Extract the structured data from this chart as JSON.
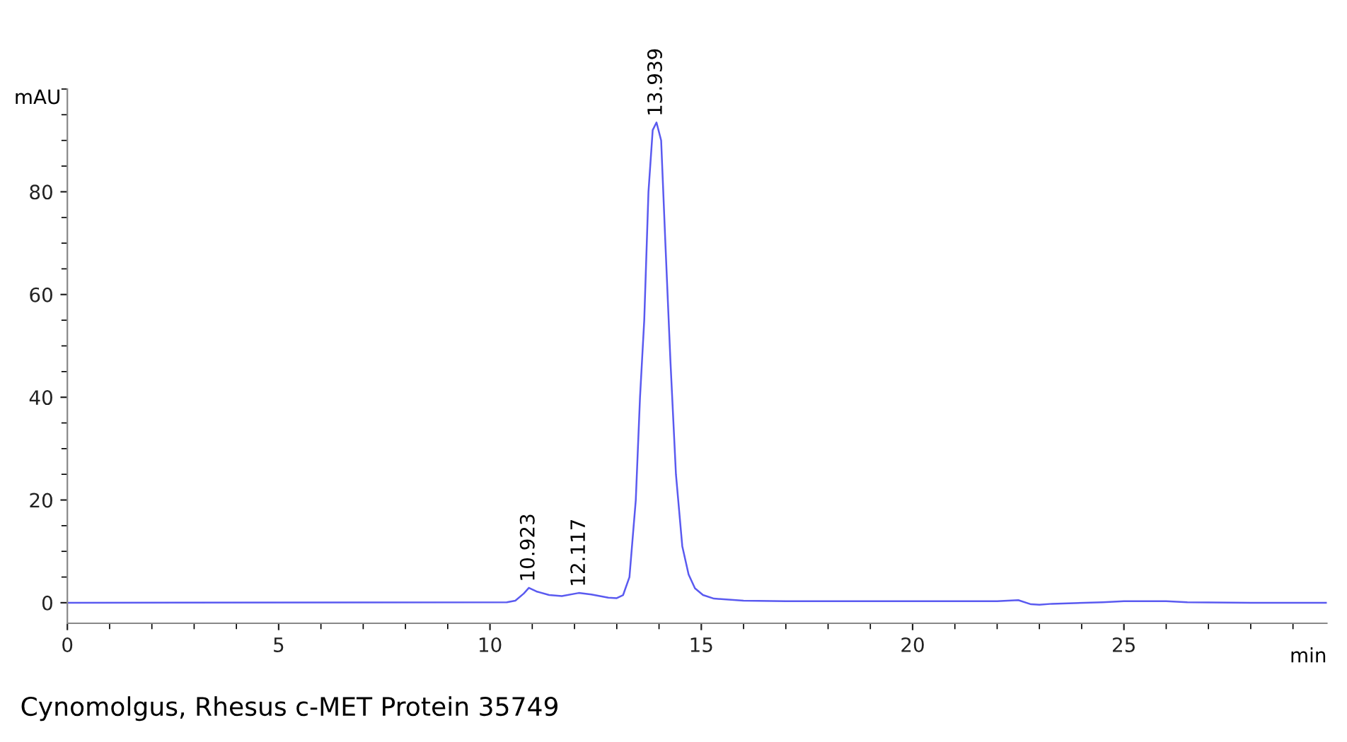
{
  "chart_data": {
    "type": "line",
    "xlabel": "min",
    "ylabel": "mAU",
    "xlim": [
      0,
      29.8
    ],
    "xticks": [
      0,
      5,
      10,
      15,
      20,
      25
    ],
    "ylim": [
      -4,
      100
    ],
    "yticks": [
      0,
      20,
      40,
      60,
      80
    ],
    "grid": false,
    "legend": false,
    "marker": "none",
    "line_style": "solid",
    "series": [
      {
        "color": "#5a5af0",
        "x": [
          0,
          10.4,
          10.6,
          10.8,
          10.92,
          11.1,
          11.4,
          11.7,
          12.1,
          12.4,
          12.8,
          13.0,
          13.15,
          13.3,
          13.45,
          13.55,
          13.65,
          13.75,
          13.85,
          13.94,
          14.05,
          14.15,
          14.27,
          14.4,
          14.55,
          14.7,
          14.85,
          15.04,
          15.3,
          16,
          17,
          20,
          22,
          22.5,
          22.8,
          23.0,
          23.3,
          24.5,
          25,
          26,
          26.5,
          28,
          29.8
        ],
        "values": [
          0,
          0.1,
          0.4,
          1.8,
          2.9,
          2.2,
          1.5,
          1.3,
          1.9,
          1.6,
          1.0,
          0.9,
          1.5,
          5,
          20,
          40,
          55,
          80,
          92,
          93.5,
          90,
          70,
          47,
          25,
          11,
          5.5,
          2.8,
          1.5,
          0.8,
          0.4,
          0.3,
          0.3,
          0.3,
          0.5,
          -0.3,
          -0.4,
          -0.2,
          0.1,
          0.3,
          0.3,
          0.1,
          0,
          0
        ]
      }
    ],
    "annotations": [
      {
        "text": "10.923",
        "x": 10.923,
        "y": 2.9
      },
      {
        "text": "12.117",
        "x": 12.117,
        "y": 1.9
      },
      {
        "text": "13.939",
        "x": 13.939,
        "y": 93.5
      },
      "Cynomolgus, Rhesus c-MET Protein 35749"
    ]
  }
}
